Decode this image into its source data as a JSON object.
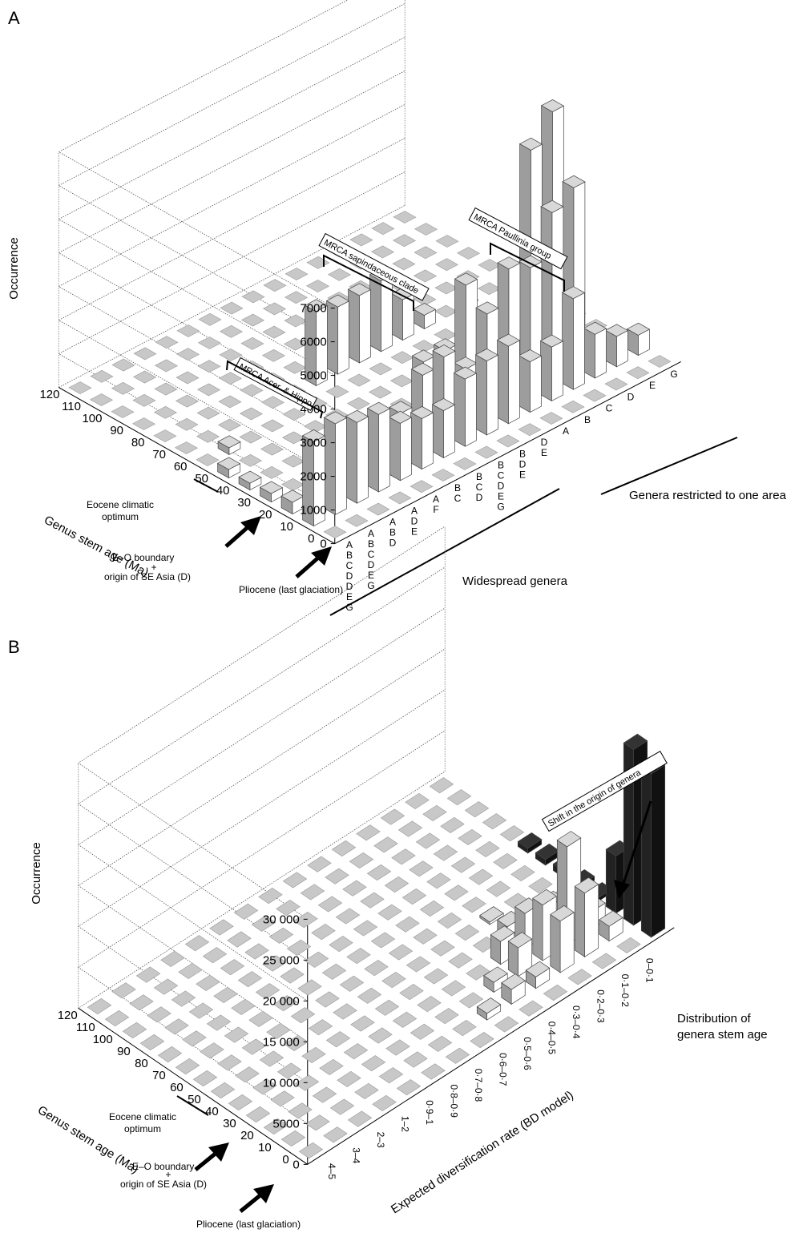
{
  "chart_data": [
    {
      "panel": "A",
      "type": "bar3d",
      "ylabel": "Occurrence",
      "ylim": [
        0,
        7000
      ],
      "yticks": [
        "0",
        "1000",
        "2000",
        "3000",
        "4000",
        "5000",
        "6000",
        "7000"
      ],
      "age_axis_label": "Genus stem age (Ma)",
      "age_ticks": [
        "0",
        "10",
        "20",
        "30",
        "40",
        "50",
        "60",
        "70",
        "80",
        "90",
        "100",
        "110",
        "120"
      ],
      "area_combinations": [
        "ABCDDEG",
        "ABCDEG",
        "ABD",
        "ADE",
        "AF",
        "BC",
        "BCD",
        "BCDEG",
        "BDE",
        "DE",
        "A",
        "B",
        "C",
        "D",
        "E",
        "G"
      ],
      "group_labels": {
        "widespread": "Widespread genera",
        "restricted": "Genera restricted to one area"
      },
      "annotations": {
        "eocene": [
          "Eocene climatic",
          "optimum"
        ],
        "eo": [
          "E–O boundary",
          "+",
          "origin of SE Asia (D)"
        ],
        "pliocene": "Pliocene (last glaciation)"
      },
      "callouts": [
        "MRCA Acer. & Hippo.",
        "MRCA sapindaceous clade",
        "MRCA Paullinia group"
      ],
      "grid": true,
      "bars": [
        {
          "age": "10",
          "area": "ABCDDEG",
          "value": 2500
        },
        {
          "age": "20",
          "area": "ABCDDEG",
          "value": 350
        },
        {
          "age": "30",
          "area": "ABCDDEG",
          "value": 250
        },
        {
          "age": "10",
          "area": "ABCDEG",
          "value": 2700
        },
        {
          "age": "10",
          "area": "ABD",
          "value": 2400
        },
        {
          "age": "20",
          "area": "ABD",
          "value": 150
        },
        {
          "age": "10",
          "area": "ADE",
          "value": 2300
        },
        {
          "age": "20",
          "area": "ADE",
          "value": 400
        },
        {
          "age": "10",
          "area": "AF",
          "value": 1700
        },
        {
          "age": "20",
          "area": "AF",
          "value": 300
        },
        {
          "age": "10",
          "area": "BC",
          "value": 1500
        },
        {
          "age": "20",
          "area": "BC",
          "value": 1300
        },
        {
          "age": "10",
          "area": "BCD",
          "value": 1400
        },
        {
          "age": "20",
          "area": "BCD",
          "value": 800
        },
        {
          "age": "30",
          "area": "BCD",
          "value": 350
        },
        {
          "age": "10",
          "area": "BCDEG",
          "value": 2000
        },
        {
          "age": "20",
          "area": "BCDEG",
          "value": 2300
        },
        {
          "age": "30",
          "area": "BCDEG",
          "value": 1400
        },
        {
          "age": "10",
          "area": "BDE",
          "value": 2200
        },
        {
          "age": "20",
          "area": "BDE",
          "value": 1600
        },
        {
          "age": "10",
          "area": "DE",
          "value": 2300
        },
        {
          "age": "20",
          "area": "DE",
          "value": 2900
        },
        {
          "age": "30",
          "area": "DE",
          "value": 3400
        },
        {
          "age": "10",
          "area": "A",
          "value": 1500
        },
        {
          "age": "20",
          "area": "A",
          "value": 3900
        },
        {
          "age": "10",
          "area": "B",
          "value": 1600
        },
        {
          "age": "20",
          "area": "B",
          "value": 3600
        },
        {
          "age": "10",
          "area": "C",
          "value": 2700
        },
        {
          "age": "20",
          "area": "C",
          "value": 4900
        },
        {
          "age": "30",
          "area": "C",
          "value": 6400
        },
        {
          "age": "10",
          "area": "D",
          "value": 1300
        },
        {
          "age": "20",
          "area": "D",
          "value": 5300
        },
        {
          "age": "30",
          "area": "D",
          "value": 7200
        },
        {
          "age": "10",
          "area": "E",
          "value": 900
        },
        {
          "age": "10",
          "area": "G",
          "value": 600
        },
        {
          "age": "40",
          "area": "A",
          "value": 600
        },
        {
          "age": "40",
          "area": "ABCDDEG",
          "value": 200
        },
        {
          "age": "50",
          "area": "ABCDDEG",
          "value": 250
        },
        {
          "age": "60",
          "area": "ABCDEG",
          "value": 200
        },
        {
          "age": "70",
          "area": "BCD",
          "value": 2200
        },
        {
          "age": "70",
          "area": "BCDEG",
          "value": 2000
        },
        {
          "age": "70",
          "area": "BDE",
          "value": 2000
        },
        {
          "age": "70",
          "area": "DE",
          "value": 2100
        },
        {
          "age": "70",
          "area": "A",
          "value": 1200
        },
        {
          "age": "70",
          "area": "B",
          "value": 400
        },
        {
          "age": "50",
          "area": "DE",
          "value": 400
        },
        {
          "age": "50",
          "area": "A",
          "value": 400
        },
        {
          "age": "50",
          "area": "B",
          "value": 500
        }
      ]
    },
    {
      "panel": "B",
      "type": "bar3d",
      "ylabel": "Occurrence",
      "ylim": [
        0,
        30000
      ],
      "yticks": [
        "0",
        "5000",
        "10 000",
        "15 000",
        "20 000",
        "25 000",
        "30 000"
      ],
      "age_axis_label": "Genus stem age (Ma)",
      "age_ticks": [
        "0",
        "10",
        "20",
        "30",
        "40",
        "50",
        "60",
        "70",
        "80",
        "90",
        "100",
        "110",
        "120"
      ],
      "rate_axis_label": "Expected diversification rate (BD model)",
      "rate_categories": [
        "4–5",
        "3–4",
        "2–3",
        "1–2",
        "0·9–1",
        "0·8–0·9",
        "0·7–0·8",
        "0·6–0·7",
        "0·5–0·6",
        "0·4–0·5",
        "0·3–0·4",
        "0·2–0·3",
        "0·1–0·2",
        "0–0·1"
      ],
      "extra_row_label": [
        "Distribution of",
        "genera stem age"
      ],
      "callout": "Shift in the origin of genera",
      "annotations": {
        "eocene": [
          "Eocene climatic",
          "optimum"
        ],
        "eo": [
          "E–O boundary",
          "+",
          "origin of SE Asia (D)"
        ],
        "pliocene": "Pliocene (last glaciation)"
      },
      "grid": true,
      "bars": [
        {
          "age": "10",
          "rate": "0·5–0·6",
          "value": 800
        },
        {
          "age": "10",
          "rate": "0·4–0·5",
          "value": 1800
        },
        {
          "age": "20",
          "rate": "0·4–0·5",
          "value": 1200
        },
        {
          "age": "10",
          "rate": "0·3–0·4",
          "value": 1400
        },
        {
          "age": "20",
          "rate": "0·3–0·4",
          "value": 3500
        },
        {
          "age": "30",
          "rate": "0·3–0·4",
          "value": 2800
        },
        {
          "age": "10",
          "rate": "0·2–0·3",
          "value": 6300
        },
        {
          "age": "20",
          "rate": "0·2–0·3",
          "value": 6800
        },
        {
          "age": "30",
          "rate": "0·2–0·3",
          "value": 4300
        },
        {
          "age": "10",
          "rate": "0·1–0·2",
          "value": 7800
        },
        {
          "age": "20",
          "rate": "0·1–0·2",
          "value": 12000
        },
        {
          "age": "30",
          "rate": "0·1–0·2",
          "value": 3200
        },
        {
          "age": "10",
          "rate": "0–0·1",
          "value": 1800
        },
        {
          "age": "20",
          "rate": "0–0·1",
          "value": 2100
        },
        {
          "age": "30",
          "rate": "0–0·1",
          "value": 700
        },
        {
          "age": "40",
          "rate": "0·2–0·3",
          "value": 1200
        },
        {
          "age": "50",
          "rate": "0·2–0·3",
          "value": 300
        }
      ],
      "dark_bars": [
        {
          "age": "0",
          "rate": "dist",
          "value": 20000
        },
        {
          "age": "10",
          "rate": "dist",
          "value": 21500
        },
        {
          "age": "20",
          "rate": "dist",
          "value": 7000
        },
        {
          "age": "30",
          "rate": "dist",
          "value": 400
        },
        {
          "age": "40",
          "rate": "dist",
          "value": 500
        },
        {
          "age": "50",
          "rate": "dist",
          "value": 800
        },
        {
          "age": "60",
          "rate": "dist",
          "value": 700
        },
        {
          "age": "70",
          "rate": "dist",
          "value": 600
        }
      ]
    }
  ]
}
